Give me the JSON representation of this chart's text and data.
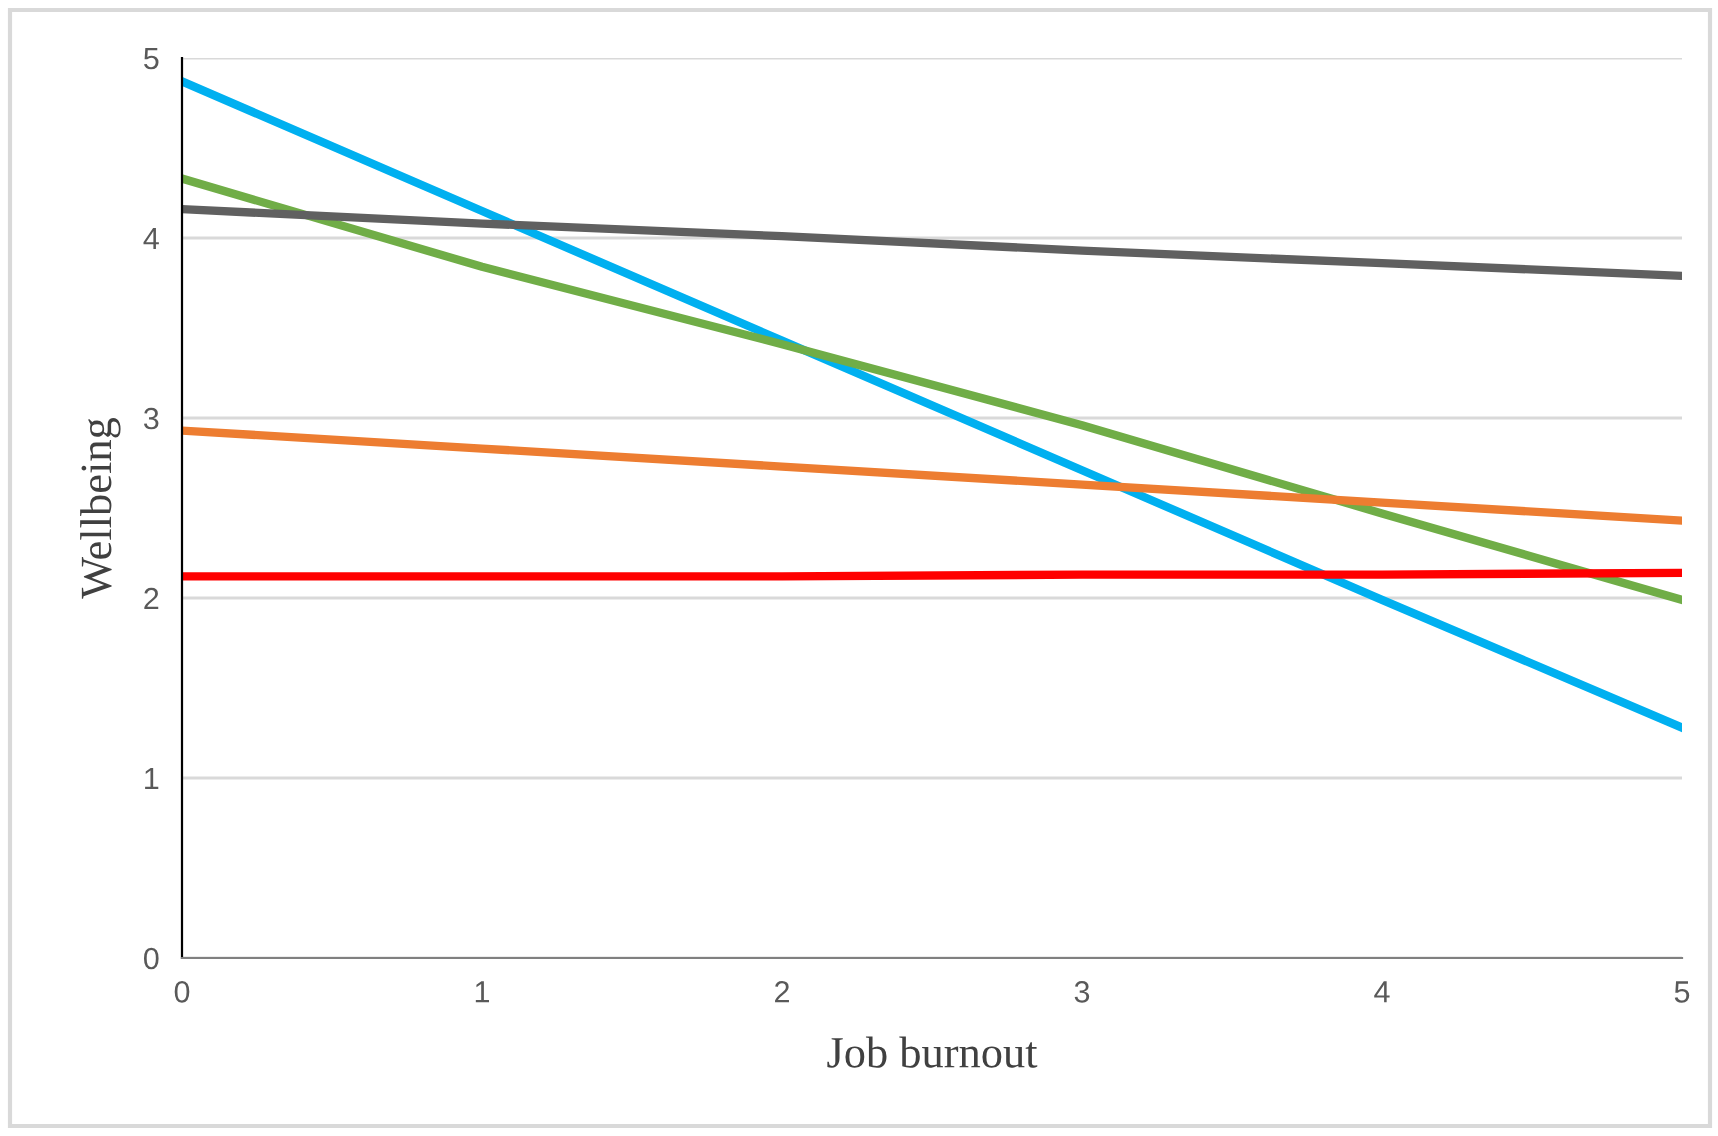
{
  "chart_data": {
    "type": "line",
    "xlabel": "Job burnout",
    "ylabel": "Wellbeing",
    "x": [
      0,
      1,
      2,
      3,
      4,
      5
    ],
    "series": [
      {
        "color": "#00b0f0",
        "values": [
          4.87,
          4.15,
          3.43,
          2.71,
          1.99,
          1.28
        ]
      },
      {
        "color": "#70ad47",
        "values": [
          4.33,
          3.84,
          3.41,
          2.96,
          2.47,
          1.99
        ]
      },
      {
        "color": "#606060",
        "values": [
          4.16,
          4.08,
          4.01,
          3.93,
          3.86,
          3.79
        ]
      },
      {
        "color": "#ed7d31",
        "values": [
          2.93,
          2.83,
          2.73,
          2.63,
          2.53,
          2.43
        ]
      },
      {
        "color": "#ff0000",
        "values": [
          2.12,
          2.12,
          2.12,
          2.13,
          2.13,
          2.14
        ]
      }
    ],
    "xlim": [
      0,
      5
    ],
    "xticks": [
      0,
      1,
      2,
      3,
      4,
      5
    ],
    "ylim": [
      0,
      5
    ],
    "yticks": [
      0,
      1,
      2,
      3,
      4,
      5
    ],
    "grid": "y",
    "marker": "none",
    "line_style": "solid"
  }
}
